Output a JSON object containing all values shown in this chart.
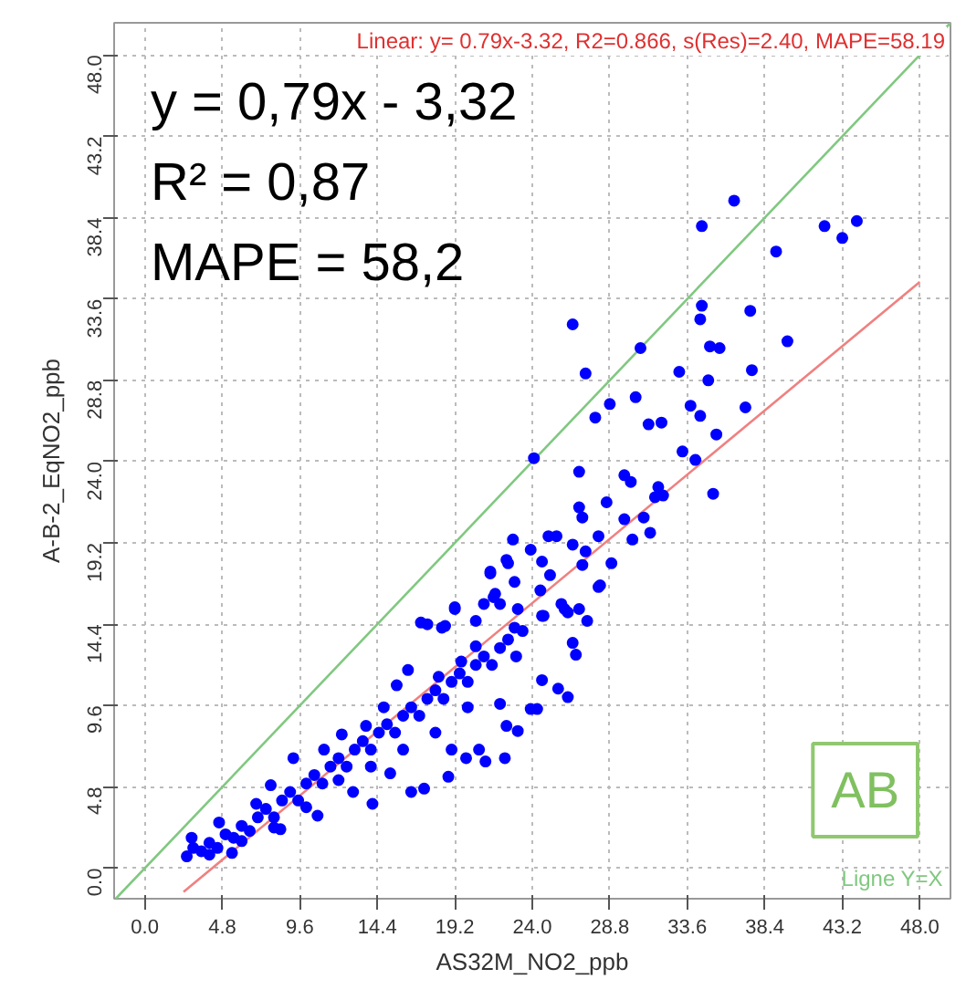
{
  "chart_data": {
    "type": "scatter",
    "xlabel": "AS32M_NO2_ppb",
    "ylabel": "A-B-2_EqNO2_ppb",
    "annotations": [
      "Linear: y= 0.79x-3.32, R2=0.866, s(Res)=2.40, MAPE=58.19",
      "y = 0,79x - 3,32",
      "R² = 0,87",
      "MAPE = 58,2",
      "AB"
    ],
    "xlim": [
      -1.9,
      49.9
    ],
    "ylim": [
      -1.8,
      49.9
    ],
    "xticks": [
      {
        "value": 0,
        "label": "0.0"
      },
      {
        "value": 4.8,
        "label": "4.8"
      },
      {
        "value": 9.6,
        "label": "9.6"
      },
      {
        "value": 14.4,
        "label": "14.4"
      },
      {
        "value": 19.2,
        "label": "19.2"
      },
      {
        "value": 24,
        "label": "24.0"
      },
      {
        "value": 28.8,
        "label": "28.8"
      },
      {
        "value": 33.6,
        "label": "33.6"
      },
      {
        "value": 38.4,
        "label": "38.4"
      },
      {
        "value": 43.2,
        "label": "43.2"
      },
      {
        "value": 48,
        "label": "48.0"
      }
    ],
    "yticks": [
      {
        "value": 0,
        "label": "0.0"
      },
      {
        "value": 4.8,
        "label": "4.8"
      },
      {
        "value": 9.6,
        "label": "9.6"
      },
      {
        "value": 14.4,
        "label": "14.4"
      },
      {
        "value": 19.2,
        "label": "19.2"
      },
      {
        "value": 24,
        "label": "24.0"
      },
      {
        "value": 28.8,
        "label": "28.8"
      },
      {
        "value": 33.6,
        "label": "33.6"
      },
      {
        "value": 38.4,
        "label": "38.4"
      },
      {
        "value": 43.2,
        "label": "43.2"
      },
      {
        "value": 48,
        "label": "48.0"
      }
    ],
    "grid": true,
    "legend": false,
    "marker": "circle",
    "series": [
      {
        "type": "line",
        "marker": "none",
        "name": "Ligne Y=X",
        "color": "#80c880",
        "x": [
          -1.8,
          49.9
        ],
        "values": [
          -1.8,
          49.9
        ]
      },
      {
        "type": "line",
        "marker": "none",
        "color": "#f08080",
        "x": [
          2.4,
          48
        ],
        "values": [
          -1.4,
          34.6
        ]
      },
      {
        "color": "#0000ff",
        "x": [
          36.5,
          34.5,
          42.1,
          44.1,
          43.2,
          39.1,
          34.5,
          34.4,
          37.5,
          39.8,
          26.5,
          30.7,
          35.0,
          35.6,
          27.3,
          33.1,
          34.9,
          37.6,
          30.4,
          28.8,
          27.9,
          33.8,
          34.4,
          37.2,
          31.2,
          32.0,
          35.4,
          33.3,
          34.1,
          24.1,
          26.9,
          29.7,
          30.1,
          31.8,
          31.6,
          32.1,
          35.2,
          26.9,
          28.6,
          27.1,
          30.9,
          29.7,
          31.3,
          30.2,
          22.8,
          25.0,
          25.5,
          23.9,
          26.5,
          27.3,
          28.1,
          28.9,
          22.5,
          24.6,
          27.1,
          21.4,
          22.9,
          25.1,
          28.1,
          24.5,
          21.7,
          19.2,
          21.0,
          22.0,
          25.8,
          23.1,
          17.1,
          18.6,
          20.5,
          24.7,
          26.2,
          27.4,
          23.4,
          2.6,
          2.9,
          4.6,
          5.4,
          6.9,
          7.8,
          9.2,
          8.4,
          10.7,
          11.1,
          12.2,
          12.9,
          13.7,
          14.8,
          14.1,
          15.2,
          15.6,
          16.3,
          16.5,
          17.3,
          17.5,
          18.2,
          18.4,
          18.8,
          19.2,
          19.0,
          19.9,
          19.6,
          20.5,
          20.7,
          21.1,
          21.4,
          21.6,
          22.3,
          22.4,
          22.0,
          23.1,
          22.9,
          23.9,
          24.3,
          24.6,
          25.6,
          26.2,
          26.0,
          26.9,
          26.7,
          28.2,
          26.5,
          24.6,
          22.4,
          3.5,
          4.0,
          4.5,
          5.0,
          5.5,
          6.0,
          6.5,
          7.0,
          7.5,
          8.0,
          8.5,
          9.0,
          9.5,
          10.0,
          10.5,
          11.0,
          11.5,
          12.0,
          12.5,
          13.0,
          13.5,
          14.0,
          14.5,
          15.0,
          15.5,
          16.0,
          16.5,
          17.0,
          17.5,
          18.0,
          18.5,
          19.0,
          19.5,
          20.0,
          20.5,
          21.0,
          21.5,
          22.0,
          22.5,
          23.0,
          3.0,
          4.0,
          6.0,
          8.0,
          10.0,
          12.0,
          14.0,
          16.0,
          18.0,
          20.0
        ],
        "values": [
          39.4,
          37.9,
          37.9,
          38.2,
          37.2,
          36.4,
          33.2,
          32.4,
          32.9,
          31.1,
          32.1,
          30.7,
          30.8,
          30.7,
          29.2,
          29.3,
          28.8,
          29.4,
          27.8,
          27.4,
          26.6,
          27.3,
          26.7,
          27.2,
          26.2,
          26.3,
          25.6,
          24.6,
          24.1,
          24.2,
          23.4,
          23.2,
          22.8,
          22.5,
          21.9,
          22.0,
          22.1,
          21.3,
          21.6,
          20.7,
          20.7,
          20.6,
          19.8,
          19.4,
          19.4,
          19.6,
          19.6,
          18.8,
          19.1,
          18.7,
          19.6,
          18.0,
          18.0,
          18.1,
          17.9,
          17.5,
          16.9,
          17.3,
          16.6,
          16.4,
          16.2,
          15.4,
          15.6,
          15.6,
          15.6,
          15.3,
          14.5,
          14.3,
          14.6,
          14.9,
          15.1,
          14.6,
          14.0,
          0.7,
          1.8,
          2.7,
          0.9,
          3.8,
          4.9,
          6.5,
          2.3,
          3.1,
          7.0,
          7.9,
          4.5,
          8.4,
          9.5,
          3.8,
          5.6,
          10.8,
          11.7,
          4.5,
          4.7,
          14.4,
          11.3,
          14.2,
          5.4,
          15.3,
          7.0,
          6.5,
          12.2,
          13.1,
          7.0,
          6.3,
          17.4,
          16.0,
          6.5,
          8.4,
          9.7,
          8.1,
          14.2,
          9.4,
          9.4,
          11.1,
          10.6,
          10.1,
          15.3,
          15.3,
          12.6,
          16.7,
          13.3,
          14.9,
          18.2,
          1.0,
          1.5,
          1.2,
          2.0,
          1.8,
          2.5,
          2.2,
          3.0,
          3.5,
          3.0,
          4.0,
          4.5,
          4.0,
          5.0,
          5.5,
          5.0,
          6.0,
          6.5,
          6.0,
          7.0,
          7.5,
          7.0,
          8.0,
          8.5,
          8.0,
          9.0,
          9.5,
          9.0,
          10.0,
          10.5,
          10.0,
          11.0,
          11.5,
          11.0,
          12.0,
          12.5,
          12.0,
          13.0,
          13.5,
          12.5,
          1.2,
          0.8,
          1.6,
          2.4,
          3.6,
          5.2,
          6.0,
          7.0,
          8.0,
          9.5
        ]
      }
    ]
  }
}
